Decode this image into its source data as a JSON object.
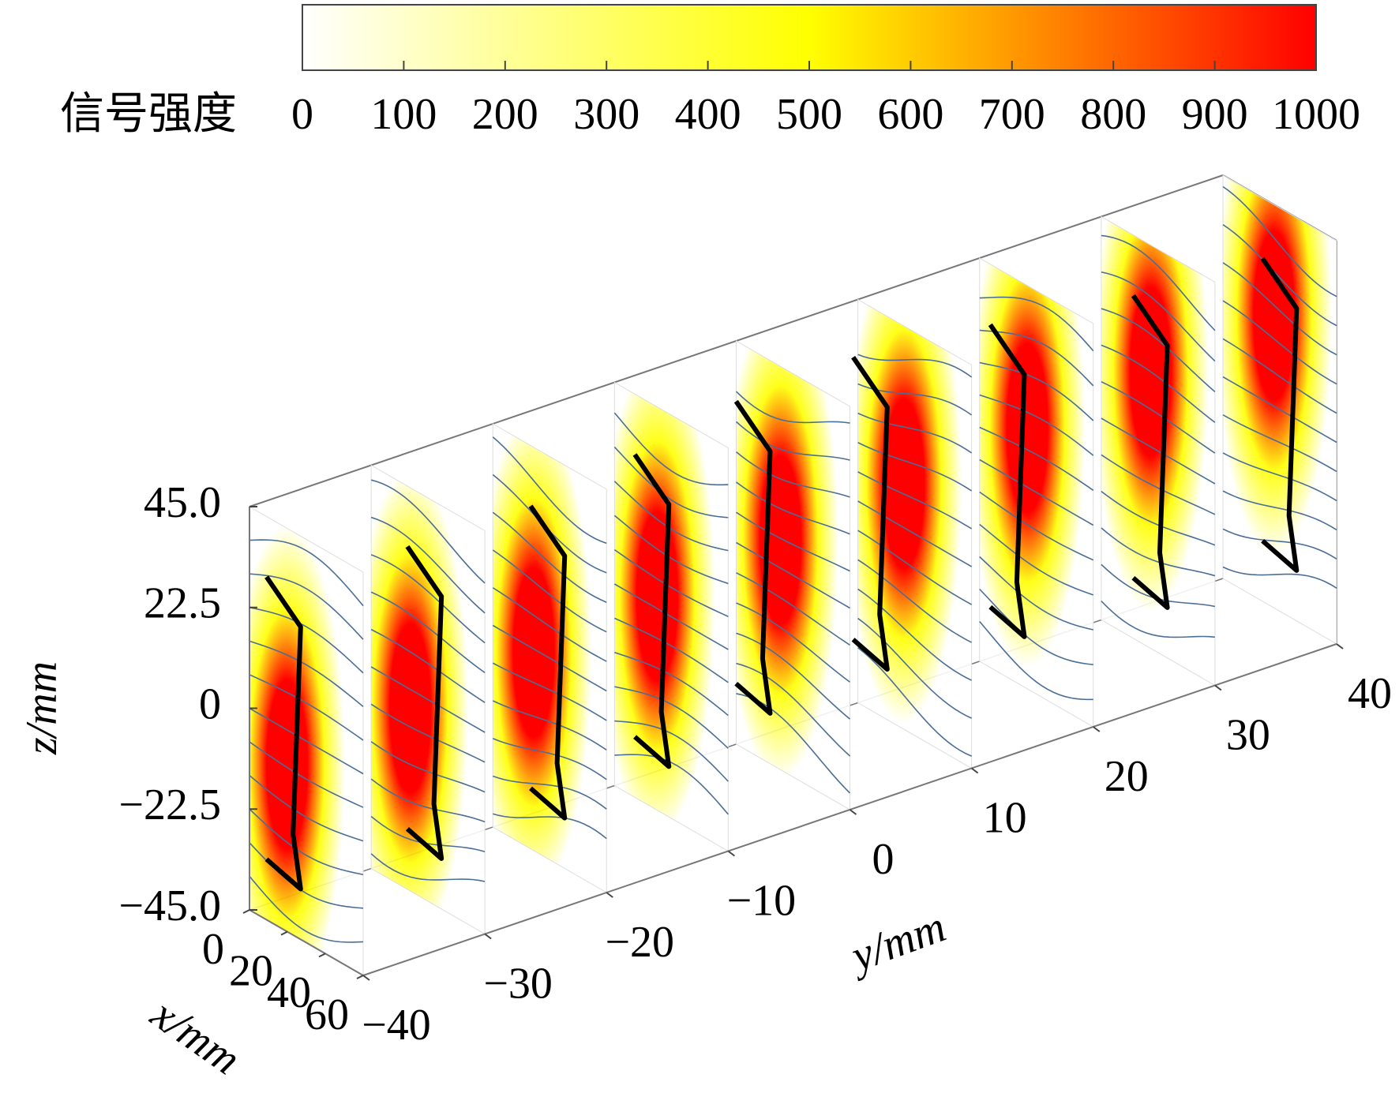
{
  "chart_data": {
    "type": "slices3d",
    "colorbar": {
      "label": "信号强度",
      "lim": [
        0,
        1000
      ],
      "ticks": [
        0,
        100,
        200,
        300,
        400,
        500,
        600,
        700,
        800,
        900,
        1000
      ],
      "colors": [
        "#ffffff",
        "#ffff00",
        "#ff0000"
      ]
    },
    "xlabel": "x/mm",
    "ylabel": "y/mm",
    "zlabel": "z/mm",
    "xlim": [
      0,
      60
    ],
    "xticks": [
      0,
      20,
      40,
      60
    ],
    "ylim": [
      -40,
      40
    ],
    "yticks": [
      {
        "value": -40,
        "label": "−40"
      },
      {
        "value": -30,
        "label": "−30"
      },
      {
        "value": -20,
        "label": "−20"
      },
      {
        "value": -10,
        "label": "−10"
      },
      0,
      10,
      20,
      30,
      40
    ],
    "zlim": [
      -45,
      45
    ],
    "zticks": [
      {
        "value": -45,
        "label": "−45.0"
      },
      {
        "value": -22.5,
        "label": "−22.5"
      },
      0,
      22.5,
      {
        "value": 45,
        "label": "45.0"
      }
    ],
    "slice_y": [
      -40,
      -30,
      -20,
      -10,
      0,
      10,
      20,
      30,
      40
    ],
    "streamline_color": "#4a6e96",
    "contour_color": "#000000"
  }
}
